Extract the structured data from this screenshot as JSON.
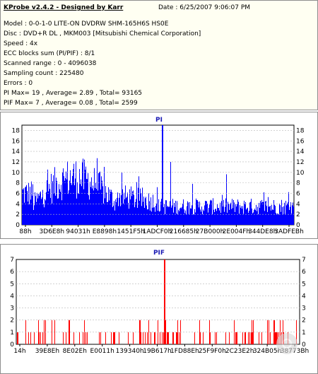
{
  "header": {
    "title": "KProbe v2.4.2 - Designed by Karr",
    "date": "Date : 6/25/2007 9:06:07 PM",
    "lines": [
      "Model : 0-0-1-0 LITE-ON DVDRW SHM-165H6S HS0E",
      "Disc : DVD+R DL , MKM003 [Mitsubishi Chemical Corporation]",
      "Speed : 4x",
      "ECC blocks sum (PI/PIF) : 8/1",
      "Scanned range : 0 - 4096038",
      "Sampling count : 225480",
      "Errors : 0",
      "PI Max= 19 , Average= 2.89 , Total= 93165",
      "PIF Max= 7 , Average= 0.08 , Total= 2599"
    ]
  },
  "chart_data": [
    {
      "type": "bar",
      "title": "PI",
      "bar_color": "#0000ff",
      "ylim": [
        0,
        19
      ],
      "yticks": [
        0,
        2,
        4,
        6,
        8,
        10,
        12,
        14,
        16,
        18
      ],
      "xtick_labels": [
        "88h",
        "3D6E8h",
        "94031h",
        "E8898h",
        "1451F5h",
        "1ADCF0h",
        "216685h",
        "27B000h",
        "2E004Fh",
        "344DE8h",
        "3ADFEBh"
      ],
      "grid": true,
      "max": 19,
      "average": 2.89
    },
    {
      "type": "bar",
      "title": "PIF",
      "bar_color": "#ff0000",
      "ylim": [
        0,
        7
      ],
      "yticks": [
        0,
        1,
        2,
        3,
        4,
        5,
        6,
        7
      ],
      "xtick_labels": [
        "14h",
        "39E8Eh",
        "8E02Eh",
        "E0011h",
        "139340h",
        "19B617h",
        "1FD88Eh",
        "25F9F0h",
        "2C23E2h",
        "324B05h",
        "38773Bh"
      ],
      "grid": true,
      "max": 7,
      "average": 0.08
    }
  ]
}
